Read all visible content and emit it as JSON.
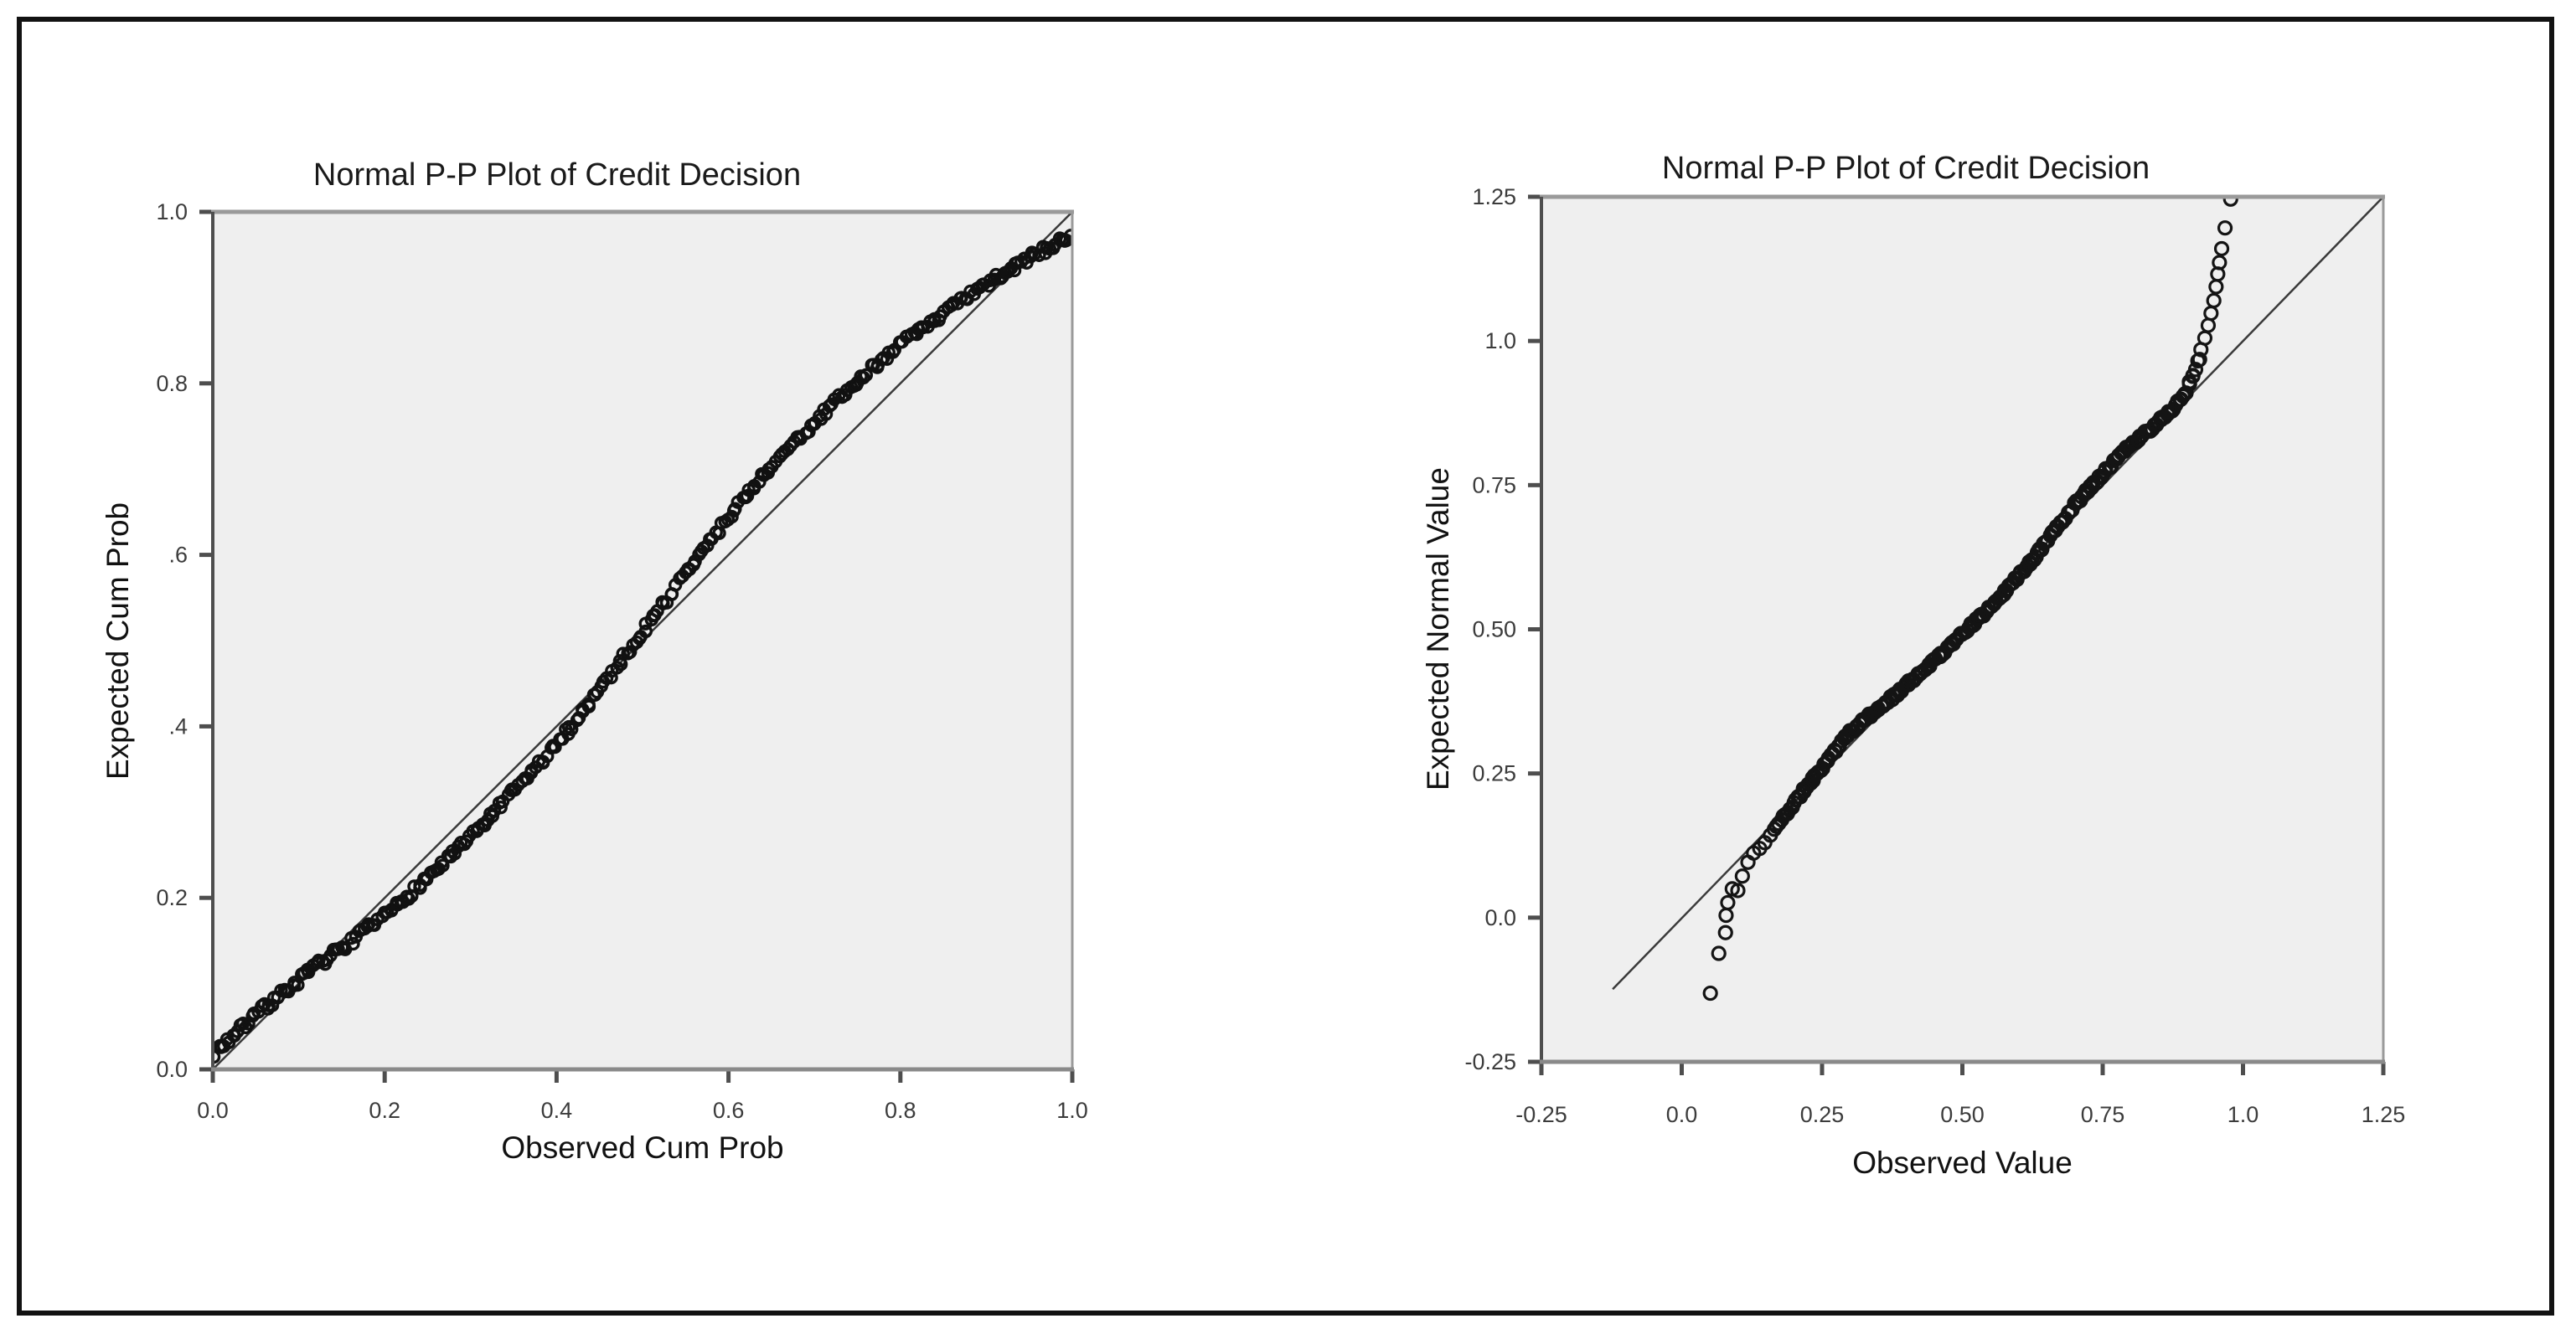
{
  "page": {
    "background": "#ffffff",
    "border_color": "#121212"
  },
  "chart_data": [
    {
      "type": "scatter",
      "title": "Normal P-P Plot of Credit Decision",
      "xlabel": "Observed Cum Prob",
      "ylabel": "Expected Cum Prob",
      "xlim": [
        0,
        1
      ],
      "ylim": [
        0,
        1
      ],
      "grid": "off",
      "legend": "none",
      "x_ticks": [
        {
          "v": 0.0,
          "label": "0.0"
        },
        {
          "v": 0.2,
          "label": "0.2"
        },
        {
          "v": 0.4,
          "label": "0.4"
        },
        {
          "v": 0.6,
          "label": "0.6"
        },
        {
          "v": 0.8,
          "label": "0.8"
        },
        {
          "v": 1.0,
          "label": "1.0"
        }
      ],
      "y_ticks": [
        {
          "v": 1.0,
          "label": "1.0"
        },
        {
          "v": 0.8,
          "label": "0.8"
        },
        {
          "v": 0.6,
          "label": ".6"
        },
        {
          "v": 0.4,
          "label": ".4"
        },
        {
          "v": 0.2,
          "label": "0.2"
        },
        {
          "v": 0.0,
          "label": "0.0"
        }
      ],
      "reference_line": {
        "x1": 0,
        "y1": 0,
        "x2": 1,
        "y2": 1,
        "color": "#3a3a3a",
        "width": 2.5
      },
      "band": {
        "description": "dense band of overlapping markers, S-shaped around the diagonal",
        "n": 300,
        "x_range": [
          0.003,
          0.998
        ],
        "jitter": 0.005,
        "seed": 7,
        "deviation_from_diagonal": [
          [
            0.0,
            0.018
          ],
          [
            0.06,
            0.012
          ],
          [
            0.12,
            0.0
          ],
          [
            0.2,
            -0.022
          ],
          [
            0.3,
            -0.03
          ],
          [
            0.4,
            -0.022
          ],
          [
            0.47,
            0.0
          ],
          [
            0.55,
            0.028
          ],
          [
            0.62,
            0.05
          ],
          [
            0.7,
            0.055
          ],
          [
            0.78,
            0.05
          ],
          [
            0.85,
            0.032
          ],
          [
            0.92,
            0.008
          ],
          [
            0.96,
            -0.008
          ],
          [
            1.0,
            -0.028
          ]
        ]
      },
      "outliers": [],
      "marker": {
        "shape": "open-circle",
        "radius": 6.5,
        "stroke_width": 3.4,
        "color": "#111111"
      },
      "colors": {
        "plot_bg": "#efefef",
        "frame": "#9a9a9a",
        "axis": "#4e4e4e",
        "tick": "#4e4e4e"
      }
    },
    {
      "type": "scatter",
      "title": "Normal P-P Plot of Credit Decision",
      "xlabel": "Observed Value",
      "ylabel": "Expected Normal Value",
      "xlim": [
        -0.25,
        1.25
      ],
      "ylim": [
        -0.25,
        1.25
      ],
      "grid": "off",
      "legend": "none",
      "x_ticks": [
        {
          "v": -0.25,
          "label": "-0.25"
        },
        {
          "v": 0.0,
          "label": "0.0"
        },
        {
          "v": 0.25,
          "label": "0.25"
        },
        {
          "v": 0.5,
          "label": "0.50"
        },
        {
          "v": 0.75,
          "label": "0.75"
        },
        {
          "v": 1.0,
          "label": "1.0"
        },
        {
          "v": 1.25,
          "label": "1.25"
        }
      ],
      "y_ticks": [
        {
          "v": 1.25,
          "label": "1.25"
        },
        {
          "v": 1.0,
          "label": "1.0"
        },
        {
          "v": 0.75,
          "label": "0.75"
        },
        {
          "v": 0.5,
          "label": "0.50"
        },
        {
          "v": 0.25,
          "label": "0.25"
        },
        {
          "v": 0.0,
          "label": "0.0"
        },
        {
          "v": -0.25,
          "label": "-0.25"
        }
      ],
      "reference_line": {
        "x1": -0.123,
        "y1": -0.124,
        "x2": 1.25,
        "y2": 1.25,
        "color": "#3a3a3a",
        "width": 2.5
      },
      "band": {
        "description": "dense band of overlapping open circles along the diagonal",
        "n": 240,
        "x_range": [
          0.165,
          0.922
        ],
        "jitter": 0.004,
        "seed": 11,
        "deviation_from_diagonal": [
          [
            0.165,
            -0.012
          ],
          [
            0.22,
            0.004
          ],
          [
            0.3,
            0.022
          ],
          [
            0.38,
            0.006
          ],
          [
            0.45,
            -0.004
          ],
          [
            0.55,
            -0.012
          ],
          [
            0.62,
            -0.006
          ],
          [
            0.7,
            0.016
          ],
          [
            0.78,
            0.022
          ],
          [
            0.85,
            0.01
          ],
          [
            0.895,
            0.008
          ],
          [
            0.92,
            0.045
          ]
        ]
      },
      "outliers": [
        [
          0.051,
          -0.131
        ],
        [
          0.066,
          -0.062
        ],
        [
          0.078,
          -0.026
        ],
        [
          0.079,
          0.004
        ],
        [
          0.082,
          0.026
        ],
        [
          0.09,
          0.05
        ],
        [
          0.1,
          0.047
        ],
        [
          0.108,
          0.072
        ],
        [
          0.118,
          0.096
        ],
        [
          0.128,
          0.112
        ],
        [
          0.139,
          0.12
        ],
        [
          0.148,
          0.13
        ],
        [
          0.158,
          0.143
        ],
        [
          0.925,
          0.985
        ],
        [
          0.932,
          1.005
        ],
        [
          0.938,
          1.027
        ],
        [
          0.943,
          1.048
        ],
        [
          0.948,
          1.07
        ],
        [
          0.952,
          1.094
        ],
        [
          0.955,
          1.116
        ],
        [
          0.958,
          1.136
        ],
        [
          0.962,
          1.16
        ],
        [
          0.968,
          1.196
        ],
        [
          0.978,
          1.246
        ]
      ],
      "marker": {
        "shape": "open-circle",
        "radius": 7.5,
        "stroke_width": 3.2,
        "color": "#141414"
      },
      "colors": {
        "plot_bg": "#efefef",
        "frame": "#9a9a9a",
        "axis": "#4e4e4e",
        "tick": "#4e4e4e"
      }
    }
  ]
}
